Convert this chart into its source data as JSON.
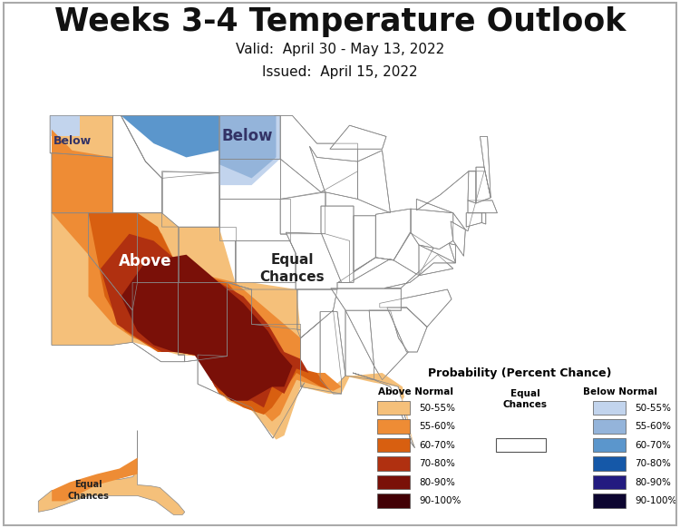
{
  "title": "Weeks 3-4 Temperature Outlook",
  "valid_text": "Valid:  April 30 - May 13, 2022",
  "issued_text": "Issued:  April 15, 2022",
  "title_fontsize": 25,
  "subtitle_fontsize": 11,
  "background_color": "#ffffff",
  "above_colors": {
    "50-55%": "#F5C07A",
    "55-60%": "#EE8C35",
    "60-70%": "#D85F10",
    "70-80%": "#B03010",
    "80-90%": "#7A1008",
    "90-100%": "#420005"
  },
  "below_colors": {
    "50-55%": "#C2D4ED",
    "55-60%": "#94B4DA",
    "60-70%": "#5B96CC",
    "70-80%": "#1558A8",
    "80-90%": "#231B80",
    "90-100%": "#0C0530"
  },
  "legend_title": "Probability (Percent Chance)",
  "above_label": "Above Normal",
  "below_label": "Below Normal",
  "equal_label": "Equal\nChances",
  "legend_entries": [
    "50-55%",
    "55-60%",
    "60-70%",
    "70-80%",
    "80-90%",
    "90-100%"
  ]
}
